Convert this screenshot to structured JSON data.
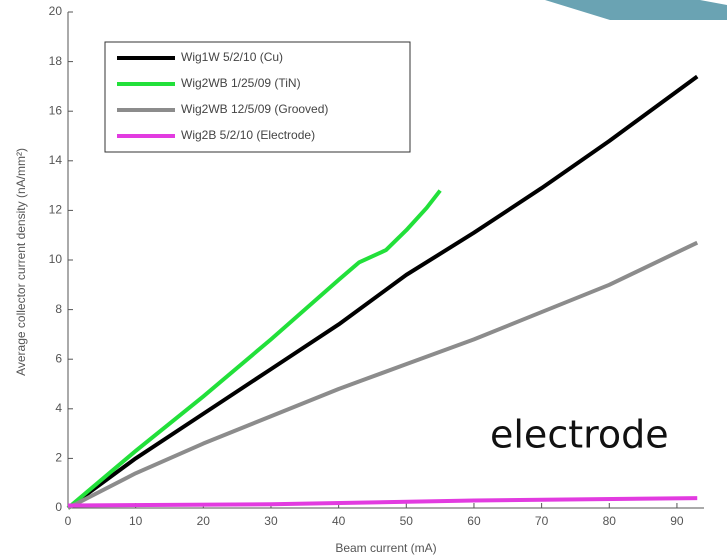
{
  "chart_data": {
    "type": "line",
    "xlabel": "Beam current (mA)",
    "ylabel": "Average collector current density (nA/mm²)",
    "annotation": "electrode",
    "xlim": [
      0,
      94
    ],
    "ylim": [
      0,
      20
    ],
    "xticks": [
      0,
      10,
      20,
      30,
      40,
      50,
      60,
      70,
      80,
      90
    ],
    "yticks": [
      0,
      2,
      4,
      6,
      8,
      10,
      12,
      14,
      16,
      18,
      20
    ],
    "series": [
      {
        "name": "Wig1W 5/2/10 (Cu)",
        "color": "#000000",
        "x": [
          0,
          10,
          20,
          30,
          40,
          50,
          60,
          70,
          80,
          93
        ],
        "values": [
          0,
          2,
          3.8,
          5.6,
          7.4,
          9.4,
          11.1,
          12.9,
          14.8,
          17.4
        ]
      },
      {
        "name": "Wig2WB 1/25/09 (TiN)",
        "color": "#22e03a",
        "x": [
          0,
          10,
          20,
          30,
          40,
          43,
          47,
          50,
          53,
          55
        ],
        "values": [
          0,
          2.3,
          4.5,
          6.8,
          9.2,
          9.9,
          10.4,
          11.2,
          12.1,
          12.8
        ]
      },
      {
        "name": "Wig2WB 12/5/09 (Grooved)",
        "color": "#8c8c8c",
        "x": [
          0,
          10,
          20,
          30,
          40,
          50,
          60,
          70,
          80,
          93
        ],
        "values": [
          0,
          1.4,
          2.6,
          3.7,
          4.8,
          5.8,
          6.8,
          7.9,
          9.0,
          10.7
        ]
      },
      {
        "name": "Wig2B 5/2/10 (Electrode)",
        "color": "#e23be0",
        "x": [
          0,
          30,
          60,
          93
        ],
        "values": [
          0.1,
          0.15,
          0.3,
          0.4
        ]
      }
    ],
    "legend": "upper left"
  }
}
